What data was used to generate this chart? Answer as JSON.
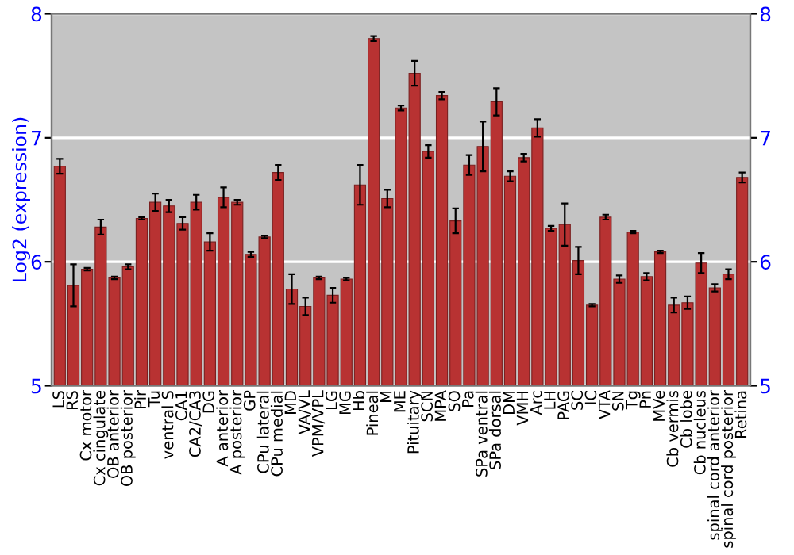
{
  "chart_data": {
    "type": "bar",
    "ylabel": "Log2 (expression)",
    "categories": [
      "LS",
      "RS",
      "Cx motor",
      "Cx cingulate",
      "OB anterior",
      "OB posterior",
      "Pir",
      "Tu",
      "ventral S",
      "CA1",
      "CA2/CA3",
      "DG",
      "A anterior",
      "A posterior",
      "GP",
      "CPu lateral",
      "CPu medial",
      "MD",
      "VA/VL",
      "VPM/VPL",
      "LG",
      "MG",
      "Hb",
      "Pineal",
      "M",
      "ME",
      "Pituitary",
      "SCN",
      "MPA",
      "SO",
      "Pa",
      "SPa ventral",
      "SPa dorsal",
      "DM",
      "VMH",
      "Arc",
      "LH",
      "PAG",
      "SC",
      "IC",
      "VTA",
      "SN",
      "Tg",
      "Pn",
      "MVe",
      "Cb vermis",
      "Cb lobe",
      "Cb nucleus",
      "spinal cord anterior",
      "spinal cord posterior",
      "Retina"
    ],
    "values": [
      6.77,
      5.81,
      5.94,
      6.28,
      5.87,
      5.96,
      6.35,
      6.48,
      6.45,
      6.31,
      6.48,
      6.16,
      6.52,
      6.48,
      6.06,
      6.2,
      6.72,
      5.78,
      5.64,
      5.87,
      5.73,
      5.86,
      6.62,
      7.8,
      6.51,
      7.24,
      7.52,
      6.89,
      7.34,
      6.33,
      6.78,
      6.93,
      7.29,
      6.69,
      6.84,
      7.08,
      6.27,
      6.3,
      6.01,
      5.65,
      6.36,
      5.86,
      6.24,
      5.88,
      6.08,
      5.65,
      5.67,
      5.99,
      5.79,
      5.9,
      6.68
    ],
    "errors": [
      0.06,
      0.17,
      0.01,
      0.06,
      0.01,
      0.02,
      0.01,
      0.07,
      0.05,
      0.05,
      0.06,
      0.07,
      0.08,
      0.02,
      0.02,
      0.01,
      0.06,
      0.12,
      0.07,
      0.01,
      0.06,
      0.01,
      0.16,
      0.02,
      0.07,
      0.02,
      0.1,
      0.05,
      0.03,
      0.1,
      0.08,
      0.2,
      0.11,
      0.04,
      0.03,
      0.07,
      0.02,
      0.17,
      0.11,
      0.01,
      0.02,
      0.03,
      0.01,
      0.03,
      0.01,
      0.06,
      0.05,
      0.08,
      0.03,
      0.04,
      0.04
    ],
    "color": "#b83232",
    "ylim": [
      5,
      8
    ],
    "yticks": [
      5,
      6,
      7,
      8
    ],
    "y2lim": [
      5,
      8
    ],
    "y2ticks": [
      5,
      6,
      7,
      8
    ],
    "grid": "y"
  }
}
